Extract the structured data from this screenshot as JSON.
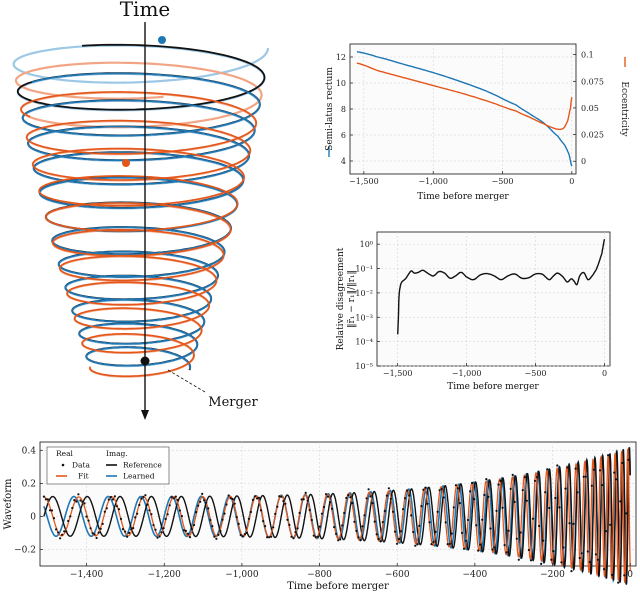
{
  "colors": {
    "blue": "#1f77b4",
    "orange": "#e4571b",
    "black": "#111111",
    "lightblue": "#9cc8e6",
    "lightorange": "#f2a585"
  },
  "spiral": {
    "time_label": "Time",
    "merger_label": "Merger"
  },
  "chart_data": [
    {
      "id": "orbital-elements",
      "type": "line",
      "xlabel": "Time before merger",
      "ylabel_left": "Semi-latus rectum",
      "ylabel_right": "Eccentricity",
      "xlim": [
        -1600,
        30
      ],
      "ylim_left": [
        3,
        13
      ],
      "ylim_right": [
        -0.012,
        0.11
      ],
      "x_ticks": [
        -1500,
        -1000,
        -500,
        0
      ],
      "x_tick_labels": [
        "−1,500",
        "−1,000",
        "−500",
        "0"
      ],
      "y_ticks_left": [
        4,
        6,
        8,
        10,
        12
      ],
      "y_tick_labels_left": [
        "4",
        "6",
        "8",
        "10",
        "12"
      ],
      "y_ticks_right": [
        0,
        0.025,
        0.05,
        0.075,
        0.1
      ],
      "y_tick_labels_right": [
        "0",
        "0.025",
        "0.05",
        "0.075",
        "0.1"
      ],
      "grid": true,
      "series": [
        {
          "name": "Semi-latus rectum",
          "axis": "left",
          "color": "#1f77b4",
          "x": [
            -1550,
            -1400,
            -1200,
            -1000,
            -800,
            -600,
            -400,
            -300,
            -200,
            -100,
            -50,
            -20,
            0
          ],
          "y": [
            12.4,
            12.0,
            11.4,
            10.8,
            10.1,
            9.3,
            8.3,
            7.6,
            6.9,
            5.9,
            5.2,
            4.5,
            3.6
          ]
        },
        {
          "name": "Eccentricity",
          "axis": "right",
          "color": "#e4571b",
          "x": [
            -1550,
            -1400,
            -1200,
            -1000,
            -800,
            -600,
            -400,
            -300,
            -200,
            -150,
            -100,
            -60,
            -30,
            -10,
            0
          ],
          "y": [
            0.092,
            0.085,
            0.078,
            0.071,
            0.064,
            0.056,
            0.047,
            0.041,
            0.035,
            0.032,
            0.03,
            0.031,
            0.038,
            0.05,
            0.06
          ]
        }
      ]
    },
    {
      "id": "relative-disagreement",
      "type": "line",
      "scale_y": "log",
      "xlabel": "Time before merger",
      "ylabel_lines": [
        "Relative disagreement",
        "‖r̃₁ − r₁‖/‖r₁‖"
      ],
      "xlim": [
        -1650,
        40
      ],
      "ylim_log": [
        -5,
        0.5
      ],
      "x_ticks": [
        -1500,
        -1000,
        -500,
        0
      ],
      "x_tick_labels": [
        "−1,500",
        "−1,000",
        "−500",
        "0"
      ],
      "y_ticks_log": [
        -5,
        -4,
        -3,
        -2,
        -1,
        0
      ],
      "y_tick_labels": [
        "10⁻⁵",
        "10⁻⁴",
        "10⁻³",
        "10⁻²",
        "10⁻¹",
        "10⁰"
      ],
      "grid": true,
      "series": [
        {
          "name": "",
          "color": "#111111",
          "x": [
            -1500,
            -1495,
            -1490,
            -1480,
            -1470,
            -1460,
            -1440,
            -1420,
            -1400,
            -1380,
            -1350,
            -1320,
            -1300,
            -1270,
            -1240,
            -1200,
            -1160,
            -1120,
            -1080,
            -1040,
            -1000,
            -950,
            -900,
            -850,
            -800,
            -750,
            -700,
            -650,
            -600,
            -550,
            -500,
            -450,
            -400,
            -370,
            -340,
            -300,
            -270,
            -240,
            -220,
            -200,
            -180,
            -150,
            -120,
            -90,
            -60,
            -40,
            -20,
            -10,
            0
          ],
          "y": [
            0.0002,
            0.001,
            0.008,
            0.02,
            0.028,
            0.032,
            0.04,
            0.06,
            0.08,
            0.065,
            0.07,
            0.085,
            0.075,
            0.058,
            0.05,
            0.075,
            0.065,
            0.04,
            0.05,
            0.07,
            0.045,
            0.035,
            0.055,
            0.062,
            0.05,
            0.035,
            0.05,
            0.06,
            0.04,
            0.042,
            0.06,
            0.058,
            0.035,
            0.05,
            0.065,
            0.045,
            0.028,
            0.038,
            0.03,
            0.022,
            0.05,
            0.068,
            0.035,
            0.05,
            0.09,
            0.18,
            0.4,
            0.8,
            1.6
          ]
        }
      ]
    },
    {
      "id": "waveform",
      "type": "line",
      "xlabel": "Time before merger",
      "ylabel": "Waveform",
      "xlim": [
        -1520,
        15
      ],
      "ylim": [
        -0.3,
        0.45
      ],
      "x_ticks": [
        -1400,
        -1200,
        -1000,
        -800,
        -600,
        -400,
        -200,
        0
      ],
      "x_tick_labels": [
        "−1,400",
        "−1,200",
        "−1,000",
        "−800",
        "−600",
        "−400",
        "−200",
        "0"
      ],
      "y_ticks": [
        -0.2,
        0,
        0.2,
        0.4
      ],
      "y_tick_labels": [
        "−0.2",
        "0",
        "0.2",
        "0.4"
      ],
      "grid": true,
      "legend": {
        "placement": "top-left",
        "col_real": "Real",
        "col_imag": "Imag.",
        "row1_real": "Data",
        "row1_imag": "Reference",
        "row2_real": "Fit",
        "row2_imag": "Learned"
      },
      "series": [
        {
          "name": "Data",
          "part": "real",
          "style": "points",
          "color": "#111111"
        },
        {
          "name": "Fit",
          "part": "real",
          "color": "#e4571b"
        },
        {
          "name": "Reference",
          "part": "imag",
          "color": "#111111"
        },
        {
          "name": "Learned",
          "part": "imag",
          "color": "#1f77b4"
        }
      ],
      "signal_model": {
        "amplitude_start": 0.12,
        "amplitude_peak": 0.42,
        "cycles_start_period": 88,
        "cycles_end_period": 8
      }
    }
  ]
}
